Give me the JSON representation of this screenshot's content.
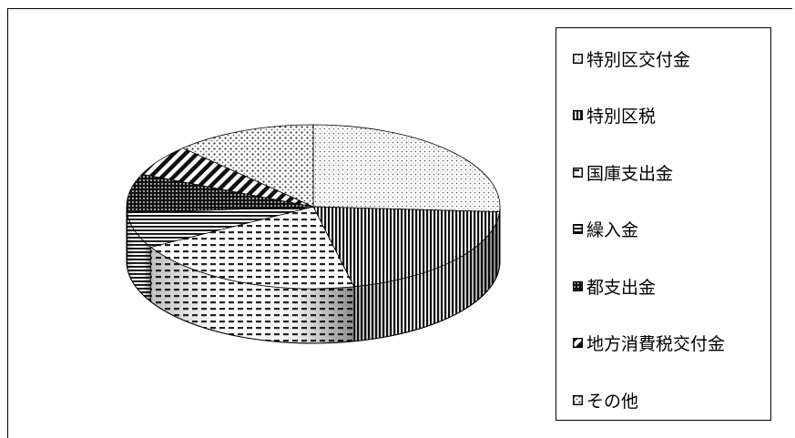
{
  "chart_data": {
    "type": "pie",
    "style": "3d-pie",
    "title": "",
    "legend_position": "right",
    "categories": [
      "特別区交付金",
      "特別区税",
      "国庫支出金",
      "繰入金",
      "都支出金",
      "地方消費税交付金",
      "その他"
    ],
    "values": [
      26,
      20.5,
      20.3,
      7,
      7.7,
      6.2,
      12.3
    ],
    "units": "%",
    "colors": [
      "#d8d8d8",
      "#3a3a3a",
      "#e6e6e6",
      "#8c8c8c",
      "#2b2b2b",
      "#7a7a7a",
      "#b8b8b8"
    ],
    "patterns": [
      "fine-dots",
      "vertical-lines",
      "dashes",
      "horizontal-lines",
      "dense-dots",
      "diagonal-stripes",
      "sparse-dots"
    ]
  }
}
